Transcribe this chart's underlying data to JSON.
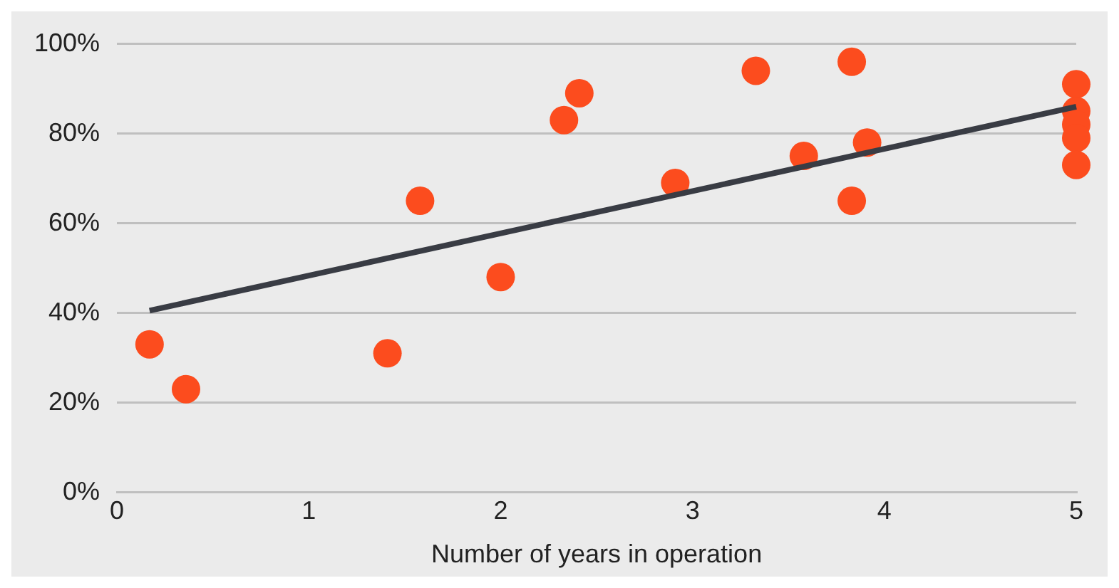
{
  "chart_data": {
    "type": "scatter",
    "xlabel": "Number of years in operation",
    "xlim": [
      0,
      5
    ],
    "xticks": [
      0,
      1,
      2,
      3,
      4,
      5
    ],
    "ylim": [
      0,
      100
    ],
    "yticks": [
      {
        "value": 0,
        "label": "0%"
      },
      {
        "value": 20,
        "label": "20%"
      },
      {
        "value": 40,
        "label": "40%"
      },
      {
        "value": 60,
        "label": "60%"
      },
      {
        "value": 80,
        "label": "80%"
      },
      {
        "value": 100,
        "label": "100%"
      }
    ],
    "grid": "y",
    "legend": false,
    "marker": "circle",
    "series": [
      {
        "color": "#fc4c1e",
        "x": [
          0.17,
          0.36,
          1.41,
          1.58,
          2.0,
          2.33,
          2.41,
          2.91,
          3.33,
          3.58,
          3.83,
          3.83,
          3.91,
          5,
          5,
          5,
          5,
          5
        ],
        "values": [
          33,
          23,
          31,
          65,
          48,
          83,
          89,
          69,
          94,
          75,
          96,
          65,
          78,
          91,
          85,
          82,
          79,
          73
        ]
      },
      {
        "type": "line",
        "color": "#393c44",
        "x": [
          0.17,
          5
        ],
        "values": [
          40.5,
          86
        ],
        "marker": "none",
        "line_style": "solid"
      }
    ]
  }
}
